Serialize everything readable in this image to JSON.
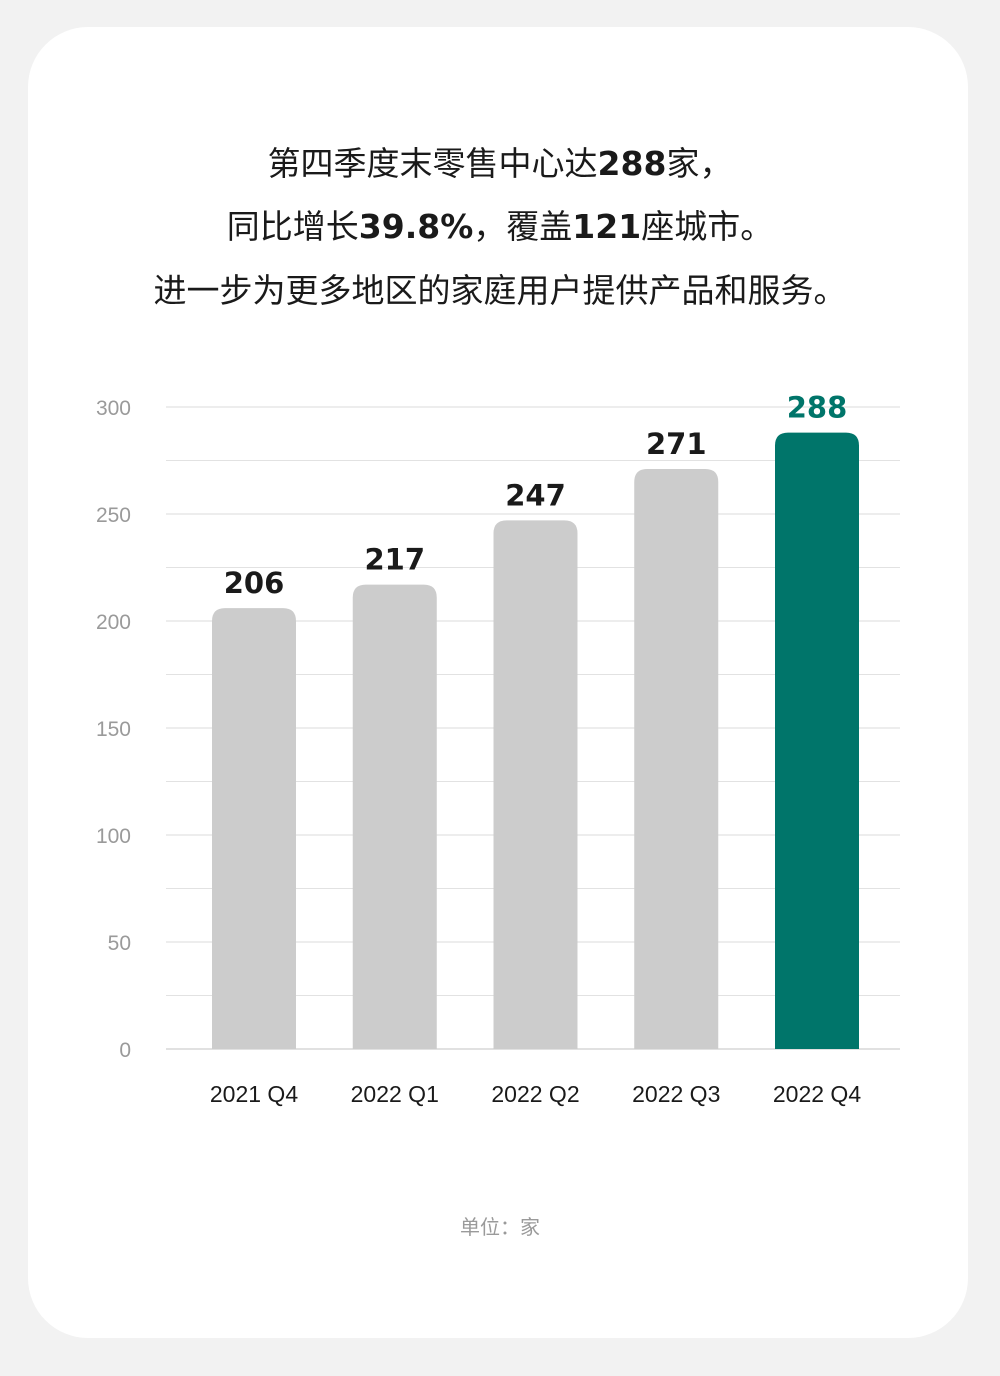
{
  "headline": {
    "line1": {
      "pre": "第四季度末零售中心达",
      "bold": "288",
      "post": "家，"
    },
    "line2": {
      "pre": "同比增长",
      "bold1": "39.8%",
      "mid": "，覆盖",
      "bold2": "121",
      "post": "座城市。"
    },
    "line3": "进一步为更多地区的家庭用户提供产品和服务。"
  },
  "unit_label": "单位：家",
  "colors": {
    "bar": "#cccccc",
    "highlight": "#00756a",
    "grid": "#e2e2e2",
    "tick": "#9a9a9a",
    "value_label": "#1a1a1a"
  },
  "chart_data": {
    "type": "bar",
    "categories": [
      "2021 Q4",
      "2022 Q1",
      "2022 Q2",
      "2022 Q3",
      "2022 Q4"
    ],
    "values": [
      206,
      217,
      247,
      271,
      288
    ],
    "highlight_index": 4,
    "ylim": [
      0,
      300
    ],
    "yticks": [
      0,
      50,
      100,
      150,
      200,
      250,
      300
    ],
    "minor_grid_step": 25,
    "grid": true,
    "xlabel": "",
    "ylabel": ""
  }
}
